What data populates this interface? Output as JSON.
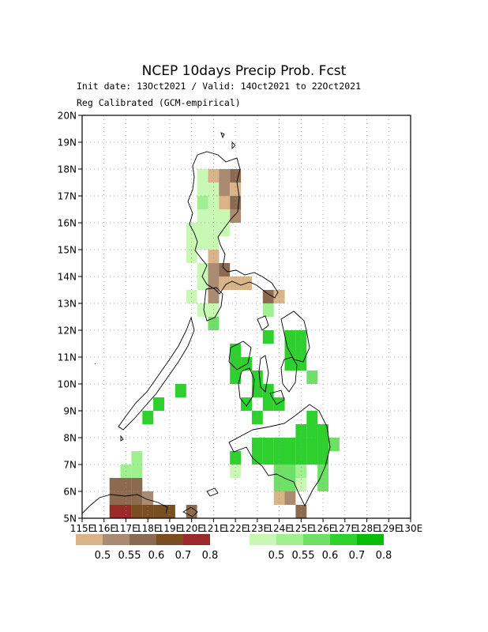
{
  "header": {
    "title": "NCEP 10days Precip Prob. Fcst",
    "subtitle1": "Init date: 13Oct2021 / Valid: 14Oct2021 to 22Oct2021",
    "subtitle2": "Reg Calibrated (GCM-empirical)"
  },
  "axes": {
    "lat_labels": [
      "5N",
      "6N",
      "7N",
      "8N",
      "9N",
      "10N",
      "11N",
      "12N",
      "13N",
      "14N",
      "15N",
      "16N",
      "17N",
      "18N",
      "19N",
      "20N"
    ],
    "lon_labels": [
      "115E",
      "116E",
      "117E",
      "118E",
      "119E",
      "120E",
      "121E",
      "122E",
      "123E",
      "124E",
      "125E",
      "126E",
      "127E",
      "128E",
      "129E",
      "130E"
    ]
  },
  "legend": {
    "dry": {
      "colors": [
        "#d8b488",
        "#aa8a70",
        "#8c6a50",
        "#7a4e20",
        "#9a2a2a"
      ],
      "labels": [
        "0.5",
        "0.55",
        "0.6",
        "0.7",
        "0.8"
      ]
    },
    "wet": {
      "colors": [
        "#c8f8b4",
        "#a0f090",
        "#6ee068",
        "#2ed02e",
        "#08bc08"
      ],
      "labels": [
        "0.5",
        "0.55",
        "0.6",
        "0.7",
        "0.8"
      ]
    }
  },
  "chart_data": {
    "type": "heatmap",
    "title": "NCEP 10days Precip Prob. Fcst",
    "xlabel": "",
    "ylabel": "",
    "xlim": [
      115,
      130
    ],
    "ylim": [
      5,
      20
    ],
    "grid": true,
    "cell_size_deg": 0.5,
    "cells": [
      {
        "lon": 120.5,
        "lat": 17.75,
        "cat": "wet1"
      },
      {
        "lon": 121.0,
        "lat": 17.75,
        "cat": "dry1"
      },
      {
        "lon": 121.5,
        "lat": 17.75,
        "cat": "dry2"
      },
      {
        "lon": 122.0,
        "lat": 17.75,
        "cat": "dry3"
      },
      {
        "lon": 120.5,
        "lat": 17.25,
        "cat": "wet1"
      },
      {
        "lon": 121.0,
        "lat": 17.25,
        "cat": "wet1"
      },
      {
        "lon": 121.5,
        "lat": 17.25,
        "cat": "dry2"
      },
      {
        "lon": 122.0,
        "lat": 17.25,
        "cat": "dry1"
      },
      {
        "lon": 120.5,
        "lat": 16.75,
        "cat": "wet2"
      },
      {
        "lon": 121.0,
        "lat": 16.75,
        "cat": "wet1"
      },
      {
        "lon": 121.5,
        "lat": 16.75,
        "cat": "dry1"
      },
      {
        "lon": 122.0,
        "lat": 16.75,
        "cat": "dry3"
      },
      {
        "lon": 120.5,
        "lat": 16.25,
        "cat": "wet1"
      },
      {
        "lon": 121.0,
        "lat": 16.25,
        "cat": "wet1"
      },
      {
        "lon": 121.5,
        "lat": 16.25,
        "cat": "wet1"
      },
      {
        "lon": 122.0,
        "lat": 16.25,
        "cat": "dry2"
      },
      {
        "lon": 120.0,
        "lat": 15.75,
        "cat": "wet1"
      },
      {
        "lon": 120.5,
        "lat": 15.75,
        "cat": "wet1"
      },
      {
        "lon": 121.0,
        "lat": 15.75,
        "cat": "wet1"
      },
      {
        "lon": 121.5,
        "lat": 15.75,
        "cat": "wet1"
      },
      {
        "lon": 120.0,
        "lat": 15.25,
        "cat": "wet1"
      },
      {
        "lon": 120.5,
        "lat": 15.25,
        "cat": "wet1"
      },
      {
        "lon": 121.0,
        "lat": 15.25,
        "cat": "wet1"
      },
      {
        "lon": 120.0,
        "lat": 14.75,
        "cat": "wet1"
      },
      {
        "lon": 121.0,
        "lat": 14.75,
        "cat": "dry1"
      },
      {
        "lon": 120.5,
        "lat": 14.25,
        "cat": "wet1"
      },
      {
        "lon": 121.0,
        "lat": 14.25,
        "cat": "dry2"
      },
      {
        "lon": 121.5,
        "lat": 14.25,
        "cat": "dry3"
      },
      {
        "lon": 120.5,
        "lat": 13.75,
        "cat": "wet1"
      },
      {
        "lon": 121.0,
        "lat": 13.75,
        "cat": "dry2"
      },
      {
        "lon": 121.5,
        "lat": 13.75,
        "cat": "dry1"
      },
      {
        "lon": 122.0,
        "lat": 13.75,
        "cat": "dry1"
      },
      {
        "lon": 122.5,
        "lat": 13.75,
        "cat": "dry1"
      },
      {
        "lon": 120.0,
        "lat": 13.25,
        "cat": "wet1"
      },
      {
        "lon": 121.0,
        "lat": 13.25,
        "cat": "dry2"
      },
      {
        "lon": 123.5,
        "lat": 13.25,
        "cat": "dry3"
      },
      {
        "lon": 124.0,
        "lat": 13.25,
        "cat": "dry1"
      },
      {
        "lon": 120.5,
        "lat": 12.75,
        "cat": "wet1"
      },
      {
        "lon": 121.0,
        "lat": 12.75,
        "cat": "wet1"
      },
      {
        "lon": 123.5,
        "lat": 12.75,
        "cat": "wet2"
      },
      {
        "lon": 121.0,
        "lat": 12.25,
        "cat": "wet3"
      },
      {
        "lon": 123.5,
        "lat": 11.75,
        "cat": "wet4"
      },
      {
        "lon": 124.5,
        "lat": 11.75,
        "cat": "wet4"
      },
      {
        "lon": 125.0,
        "lat": 11.75,
        "cat": "wet4"
      },
      {
        "lon": 122.0,
        "lat": 11.25,
        "cat": "wet4"
      },
      {
        "lon": 124.5,
        "lat": 11.25,
        "cat": "wet4"
      },
      {
        "lon": 125.0,
        "lat": 11.25,
        "cat": "wet4"
      },
      {
        "lon": 122.0,
        "lat": 10.75,
        "cat": "wet4"
      },
      {
        "lon": 122.5,
        "lat": 10.75,
        "cat": "wet4"
      },
      {
        "lon": 124.5,
        "lat": 10.75,
        "cat": "wet4"
      },
      {
        "lon": 125.0,
        "lat": 10.75,
        "cat": "wet4"
      },
      {
        "lon": 122.0,
        "lat": 10.25,
        "cat": "wet4"
      },
      {
        "lon": 123.0,
        "lat": 10.25,
        "cat": "wet4"
      },
      {
        "lon": 125.5,
        "lat": 10.25,
        "cat": "wet3"
      },
      {
        "lon": 123.0,
        "lat": 9.75,
        "cat": "wet4"
      },
      {
        "lon": 123.5,
        "lat": 9.75,
        "cat": "wet4"
      },
      {
        "lon": 122.5,
        "lat": 9.25,
        "cat": "wet4"
      },
      {
        "lon": 123.5,
        "lat": 9.25,
        "cat": "wet4"
      },
      {
        "lon": 124.0,
        "lat": 9.25,
        "cat": "wet4"
      },
      {
        "lon": 123.0,
        "lat": 8.75,
        "cat": "wet4"
      },
      {
        "lon": 125.5,
        "lat": 8.75,
        "cat": "wet4"
      },
      {
        "lon": 125.0,
        "lat": 8.25,
        "cat": "wet4"
      },
      {
        "lon": 125.5,
        "lat": 8.25,
        "cat": "wet4"
      },
      {
        "lon": 126.0,
        "lat": 8.25,
        "cat": "wet4"
      },
      {
        "lon": 123.0,
        "lat": 7.75,
        "cat": "wet4"
      },
      {
        "lon": 123.5,
        "lat": 7.75,
        "cat": "wet4"
      },
      {
        "lon": 124.0,
        "lat": 7.75,
        "cat": "wet4"
      },
      {
        "lon": 124.5,
        "lat": 7.75,
        "cat": "wet4"
      },
      {
        "lon": 125.0,
        "lat": 7.75,
        "cat": "wet4"
      },
      {
        "lon": 125.5,
        "lat": 7.75,
        "cat": "wet4"
      },
      {
        "lon": 126.0,
        "lat": 7.75,
        "cat": "wet4"
      },
      {
        "lon": 126.5,
        "lat": 7.75,
        "cat": "wet3"
      },
      {
        "lon": 122.0,
        "lat": 7.25,
        "cat": "wet4"
      },
      {
        "lon": 123.0,
        "lat": 7.25,
        "cat": "wet4"
      },
      {
        "lon": 123.5,
        "lat": 7.25,
        "cat": "wet4"
      },
      {
        "lon": 124.0,
        "lat": 7.25,
        "cat": "wet4"
      },
      {
        "lon": 124.5,
        "lat": 7.25,
        "cat": "wet4"
      },
      {
        "lon": 125.0,
        "lat": 7.25,
        "cat": "wet4"
      },
      {
        "lon": 125.5,
        "lat": 7.25,
        "cat": "wet4"
      },
      {
        "lon": 126.0,
        "lat": 7.25,
        "cat": "wet4"
      },
      {
        "lon": 122.0,
        "lat": 6.75,
        "cat": "wet1"
      },
      {
        "lon": 124.0,
        "lat": 6.75,
        "cat": "wet3"
      },
      {
        "lon": 124.5,
        "lat": 6.75,
        "cat": "wet3"
      },
      {
        "lon": 125.0,
        "lat": 6.75,
        "cat": "wet2"
      },
      {
        "lon": 126.0,
        "lat": 6.75,
        "cat": "wet3"
      },
      {
        "lon": 124.0,
        "lat": 6.25,
        "cat": "wet3"
      },
      {
        "lon": 124.5,
        "lat": 6.25,
        "cat": "wet3"
      },
      {
        "lon": 125.0,
        "lat": 6.25,
        "cat": "wet1"
      },
      {
        "lon": 126.0,
        "lat": 6.25,
        "cat": "wet3"
      },
      {
        "lon": 124.0,
        "lat": 5.75,
        "cat": "dry1"
      },
      {
        "lon": 124.5,
        "lat": 5.75,
        "cat": "dry2"
      },
      {
        "lon": 125.0,
        "lat": 5.25,
        "cat": "dry3"
      },
      {
        "lon": 119.5,
        "lat": 9.75,
        "cat": "wet4"
      },
      {
        "lon": 118.5,
        "lat": 9.25,
        "cat": "wet4"
      },
      {
        "lon": 118.0,
        "lat": 8.75,
        "cat": "wet4"
      },
      {
        "lon": 117.5,
        "lat": 7.25,
        "cat": "wet2"
      },
      {
        "lon": 117.0,
        "lat": 6.75,
        "cat": "wet2"
      },
      {
        "lon": 117.5,
        "lat": 6.75,
        "cat": "wet2"
      },
      {
        "lon": 116.5,
        "lat": 6.25,
        "cat": "dry3"
      },
      {
        "lon": 117.0,
        "lat": 6.25,
        "cat": "dry3"
      },
      {
        "lon": 117.5,
        "lat": 6.25,
        "cat": "dry3"
      },
      {
        "lon": 116.5,
        "lat": 5.75,
        "cat": "dry3"
      },
      {
        "lon": 117.0,
        "lat": 5.75,
        "cat": "dry3"
      },
      {
        "lon": 117.5,
        "lat": 5.75,
        "cat": "dry3"
      },
      {
        "lon": 118.0,
        "lat": 5.75,
        "cat": "dry2"
      },
      {
        "lon": 116.5,
        "lat": 5.25,
        "cat": "dry5"
      },
      {
        "lon": 117.0,
        "lat": 5.25,
        "cat": "dry5"
      },
      {
        "lon": 117.5,
        "lat": 5.25,
        "cat": "dry4"
      },
      {
        "lon": 118.0,
        "lat": 5.25,
        "cat": "dry4"
      },
      {
        "lon": 118.5,
        "lat": 5.25,
        "cat": "dry4"
      },
      {
        "lon": 119.0,
        "lat": 5.25,
        "cat": "dry4"
      },
      {
        "lon": 120.0,
        "lat": 5.25,
        "cat": "dry3"
      }
    ]
  }
}
